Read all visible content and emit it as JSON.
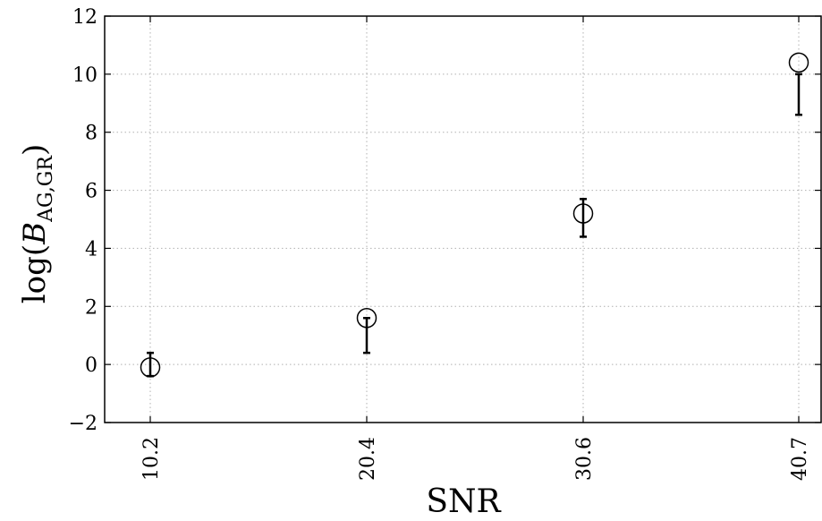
{
  "chart_data": {
    "type": "scatter",
    "title": "",
    "xlabel": "SNR",
    "ylabel": {
      "prefix": "log(",
      "main": "B",
      "subscript": "AG,GR",
      "suffix": ")"
    },
    "x_ticks": [
      "10.2",
      "20.4",
      "30.6",
      "40.7"
    ],
    "y_ticks": [
      "−2",
      "0",
      "2",
      "4",
      "6",
      "8",
      "10",
      "12"
    ],
    "ylim": [
      -2,
      12
    ],
    "grid": true,
    "points": [
      {
        "x": "10.2",
        "y": -0.1,
        "err_low": -0.4,
        "err_high": 0.4
      },
      {
        "x": "20.4",
        "y": 1.6,
        "err_low": 0.4,
        "err_high": 1.6
      },
      {
        "x": "30.6",
        "y": 5.2,
        "err_low": 4.4,
        "err_high": 5.7
      },
      {
        "x": "40.7",
        "y": 10.4,
        "err_low": 8.6,
        "err_high": 10.0
      }
    ],
    "colors": {
      "marker": "#000000",
      "errorbar": "#000000",
      "grid": "#b0b0b0"
    }
  }
}
